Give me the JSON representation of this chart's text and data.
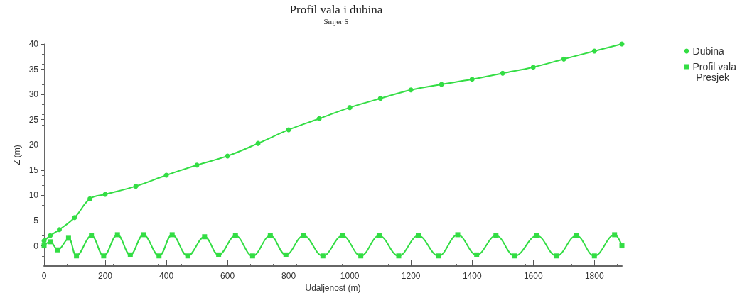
{
  "chart_data": {
    "type": "line",
    "title": "Profil vala i dubina",
    "subtitle": "Smjer S",
    "xlabel": "Udaljenost (m)",
    "ylabel": "Z (m)",
    "xlim": [
      0,
      1890
    ],
    "xticks": [
      0,
      200,
      400,
      600,
      800,
      1000,
      1200,
      1400,
      1600,
      1800
    ],
    "ylim": [
      -4,
      40
    ],
    "yticks": [
      0,
      5,
      10,
      15,
      20,
      25,
      30,
      35,
      40
    ],
    "grid": false,
    "legend": "right",
    "annotations": [
      "Presjek"
    ],
    "series": [
      {
        "name": "Dubina",
        "color": "#33dd44",
        "marker": "circle",
        "x": [
          0,
          20,
          50,
          100,
          150,
          200,
          300,
          400,
          500,
          600,
          700,
          800,
          900,
          1000,
          1100,
          1200,
          1300,
          1400,
          1500,
          1600,
          1700,
          1800,
          1890
        ],
        "values": [
          1,
          2,
          3.2,
          5.6,
          9.3,
          10.2,
          11.8,
          14,
          16,
          17.8,
          20.3,
          23,
          25.2,
          27.4,
          29.2,
          30.9,
          32,
          33,
          34.2,
          35.4,
          37,
          38.6,
          40
        ]
      },
      {
        "name": "Profil vala",
        "color": "#33dd44",
        "marker": "square",
        "x": [
          0,
          20,
          45,
          80,
          106,
          155,
          195,
          240,
          282,
          325,
          376,
          419,
          470,
          525,
          571,
          626,
          682,
          740,
          791,
          849,
          912,
          976,
          1036,
          1096,
          1160,
          1224,
          1290,
          1353,
          1415,
          1478,
          1540,
          1612,
          1676,
          1741,
          1800,
          1866,
          1890
        ],
        "values": [
          0,
          0.8,
          -0.8,
          1.5,
          -2,
          2,
          -2,
          2.2,
          -1.8,
          2.2,
          -2,
          2.2,
          -2,
          1.8,
          -1.8,
          2,
          -2,
          2,
          -1.8,
          2,
          -2,
          2,
          -2,
          2,
          -2,
          2,
          -2,
          2.2,
          -1.8,
          2,
          -2,
          2,
          -2,
          2,
          -2,
          2.2,
          0
        ]
      }
    ]
  }
}
